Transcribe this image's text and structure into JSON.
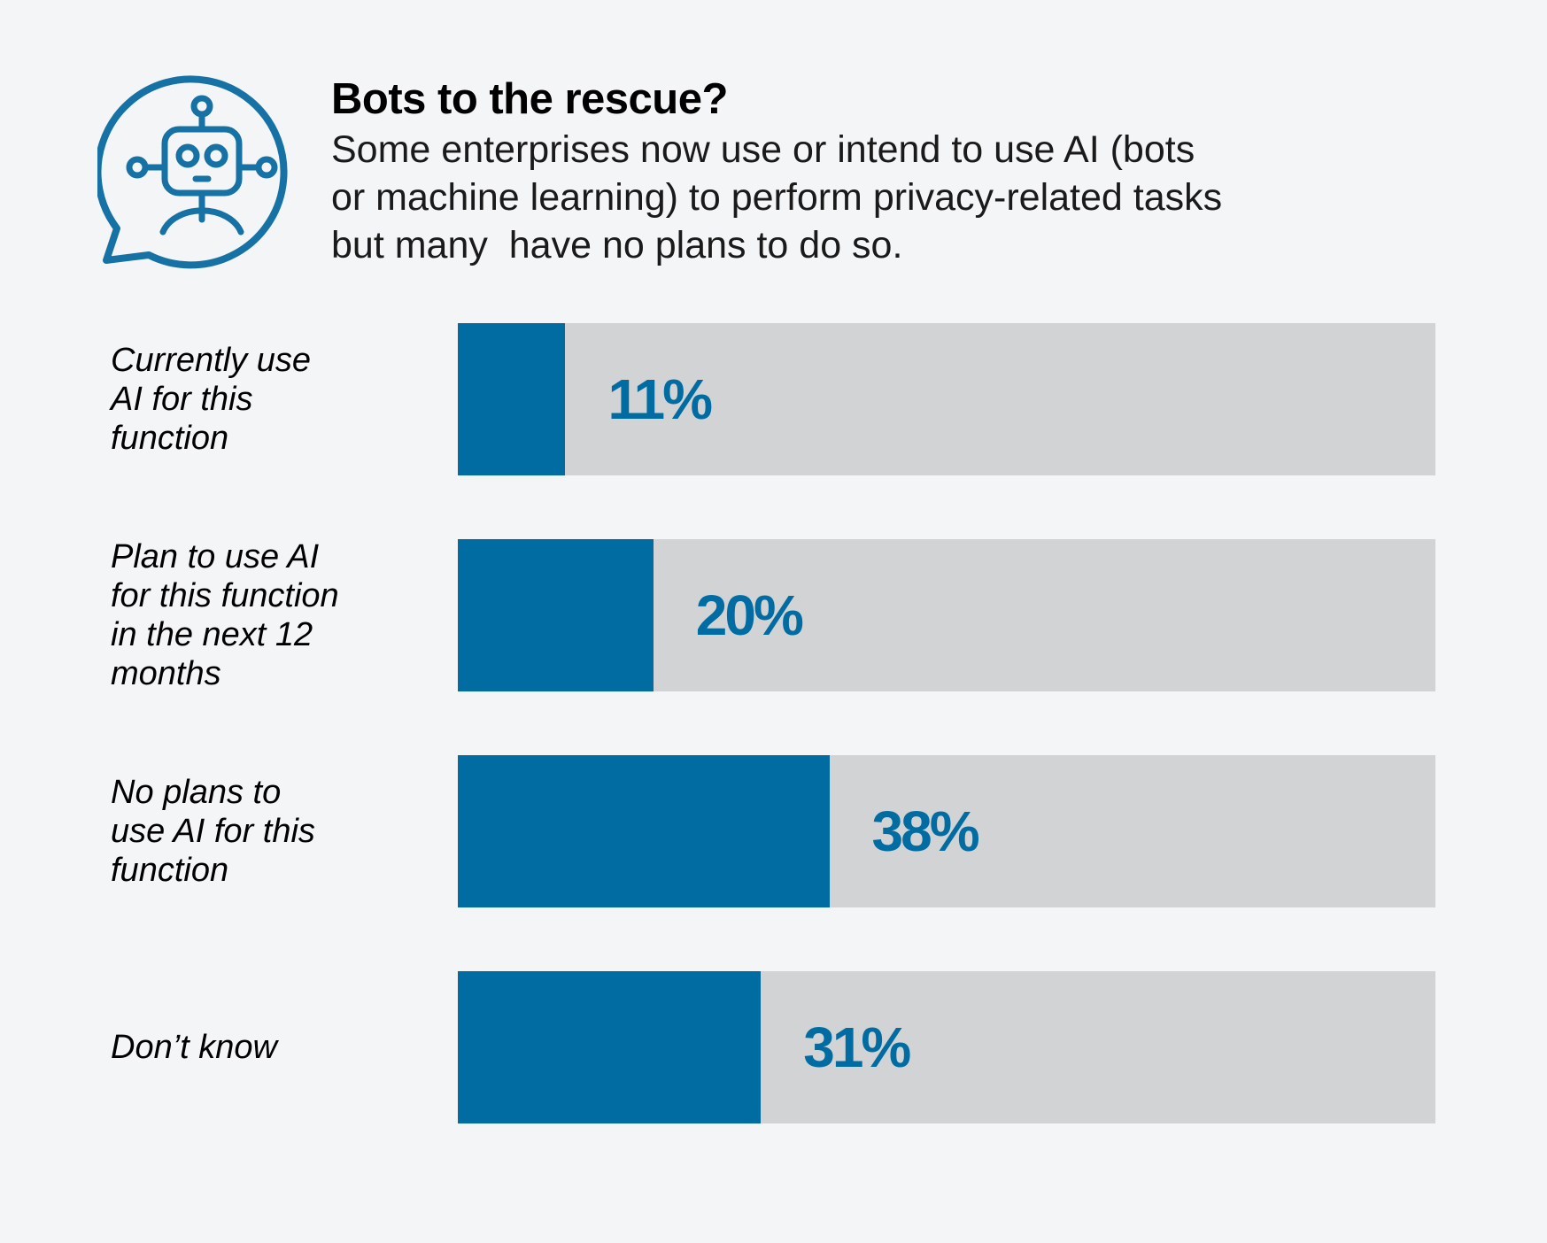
{
  "header": {
    "title": "Bots to the rescue?",
    "subtitle_lines": [
      "Some enterprises now use or intend to use AI (bots",
      "or machine learning) to perform privacy-related tasks",
      "but many  have no plans to do so."
    ],
    "icon": "robot-speech-bubble-icon"
  },
  "colors": {
    "background": "#f3f5f7",
    "bar_fill": "#006ca2",
    "bar_track": "#d1d3d5",
    "value_text": "#006ca2",
    "icon": "#1671a4"
  },
  "chart_data": {
    "type": "bar",
    "orientation": "horizontal",
    "categories": [
      "Currently use AI for this function",
      "Plan to use AI for this function in the next 12 months",
      "No plans to use AI for this function",
      "Don’t know"
    ],
    "category_lines": [
      [
        "Currently use",
        "AI for this",
        "function"
      ],
      [
        "Plan to use AI",
        "for this function",
        "in the next 12",
        "months"
      ],
      [
        "No plans to",
        "use AI for this",
        "function"
      ],
      [
        "Don’t know"
      ]
    ],
    "values": [
      11,
      20,
      38,
      31
    ],
    "value_labels": [
      "11%",
      "20%",
      "38%",
      "31%"
    ],
    "unit": "%",
    "xlim": [
      0,
      100
    ],
    "grid": false,
    "legend": "none"
  }
}
